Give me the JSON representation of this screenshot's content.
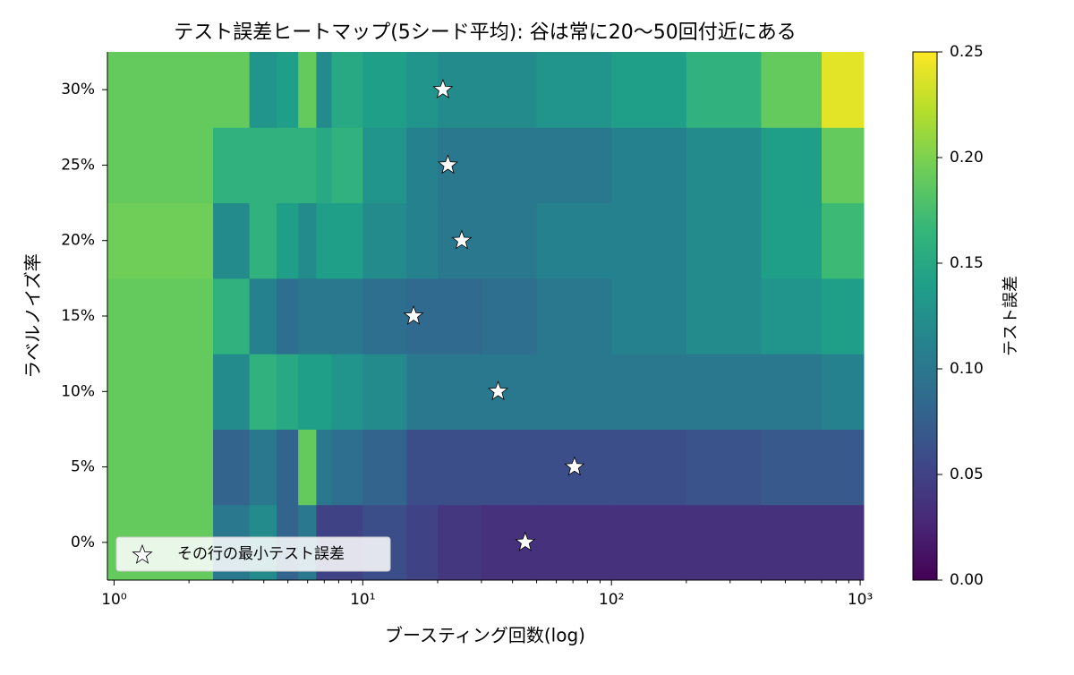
{
  "chart_data": {
    "type": "heatmap",
    "title": "テスト誤差ヒートマップ(5シード平均): 谷は常に20〜50回付近にある",
    "xlabel": "ブースティング回数(log)",
    "ylabel": "ラベルノイズ率",
    "xscale": "log",
    "xlim": [
      0.94,
      1033
    ],
    "xticks": [
      {
        "value": 1,
        "label": "10⁰"
      },
      {
        "value": 10,
        "label": "10¹"
      },
      {
        "value": 100,
        "label": "10²"
      },
      {
        "value": 1000,
        "label": "10³"
      }
    ],
    "xminorticks": [
      2,
      3,
      4,
      5,
      6,
      7,
      8,
      9,
      20,
      30,
      40,
      50,
      60,
      70,
      80,
      90,
      200,
      300,
      400,
      500,
      600,
      700,
      800,
      900
    ],
    "y": [
      0,
      5,
      10,
      15,
      20,
      25,
      30
    ],
    "ylim": [
      -2.5,
      32.5
    ],
    "yticks": [
      {
        "value": 0,
        "label": "0%"
      },
      {
        "value": 5,
        "label": "5%"
      },
      {
        "value": 10,
        "label": "10%"
      },
      {
        "value": 15,
        "label": "15%"
      },
      {
        "value": 20,
        "label": "20%"
      },
      {
        "value": 25,
        "label": "25%"
      },
      {
        "value": 30,
        "label": "30%"
      }
    ],
    "x_edges": [
      0.94,
      2.5,
      3.5,
      4.5,
      5.5,
      6.5,
      7.5,
      10,
      15,
      20,
      30,
      50,
      100,
      200,
      400,
      700,
      1033
    ],
    "values": [
      [
        0.19,
        0.1,
        0.12,
        0.08,
        0.1,
        0.05,
        0.05,
        0.06,
        0.05,
        0.04,
        0.035,
        0.035,
        0.035,
        0.035,
        0.035,
        0.035
      ],
      [
        0.19,
        0.08,
        0.1,
        0.08,
        0.19,
        0.1,
        0.09,
        0.08,
        0.06,
        0.06,
        0.06,
        0.06,
        0.06,
        0.065,
        0.07,
        0.07
      ],
      [
        0.19,
        0.12,
        0.16,
        0.15,
        0.14,
        0.14,
        0.13,
        0.12,
        0.1,
        0.1,
        0.1,
        0.1,
        0.1,
        0.1,
        0.1,
        0.11
      ],
      [
        0.19,
        0.16,
        0.11,
        0.09,
        0.1,
        0.1,
        0.1,
        0.09,
        0.085,
        0.085,
        0.09,
        0.1,
        0.11,
        0.12,
        0.13,
        0.14
      ],
      [
        0.195,
        0.12,
        0.16,
        0.14,
        0.12,
        0.14,
        0.14,
        0.12,
        0.11,
        0.1,
        0.1,
        0.11,
        0.11,
        0.12,
        0.14,
        0.17
      ],
      [
        0.19,
        0.16,
        0.16,
        0.16,
        0.16,
        0.15,
        0.16,
        0.13,
        0.11,
        0.1,
        0.1,
        0.1,
        0.11,
        0.12,
        0.14,
        0.19
      ],
      [
        0.19,
        0.19,
        0.13,
        0.14,
        0.19,
        0.12,
        0.15,
        0.14,
        0.13,
        0.12,
        0.12,
        0.13,
        0.14,
        0.16,
        0.19,
        0.24
      ]
    ],
    "colormap": "viridis",
    "clim": [
      0,
      0.25
    ],
    "colorbar_label": "テスト誤差",
    "colorbar_ticks": [
      {
        "value": 0,
        "label": "0.00"
      },
      {
        "value": 0.05,
        "label": "0.05"
      },
      {
        "value": 0.1,
        "label": "0.10"
      },
      {
        "value": 0.15,
        "label": "0.15"
      },
      {
        "value": 0.2,
        "label": "0.20"
      },
      {
        "value": 0.25,
        "label": "0.25"
      }
    ],
    "stars": {
      "name": "その行の最小テスト誤差",
      "x": [
        45,
        71,
        35,
        16,
        25,
        22,
        21
      ],
      "y": [
        0,
        5,
        10,
        15,
        20,
        25,
        30
      ]
    },
    "legend_loc": "lower left"
  }
}
